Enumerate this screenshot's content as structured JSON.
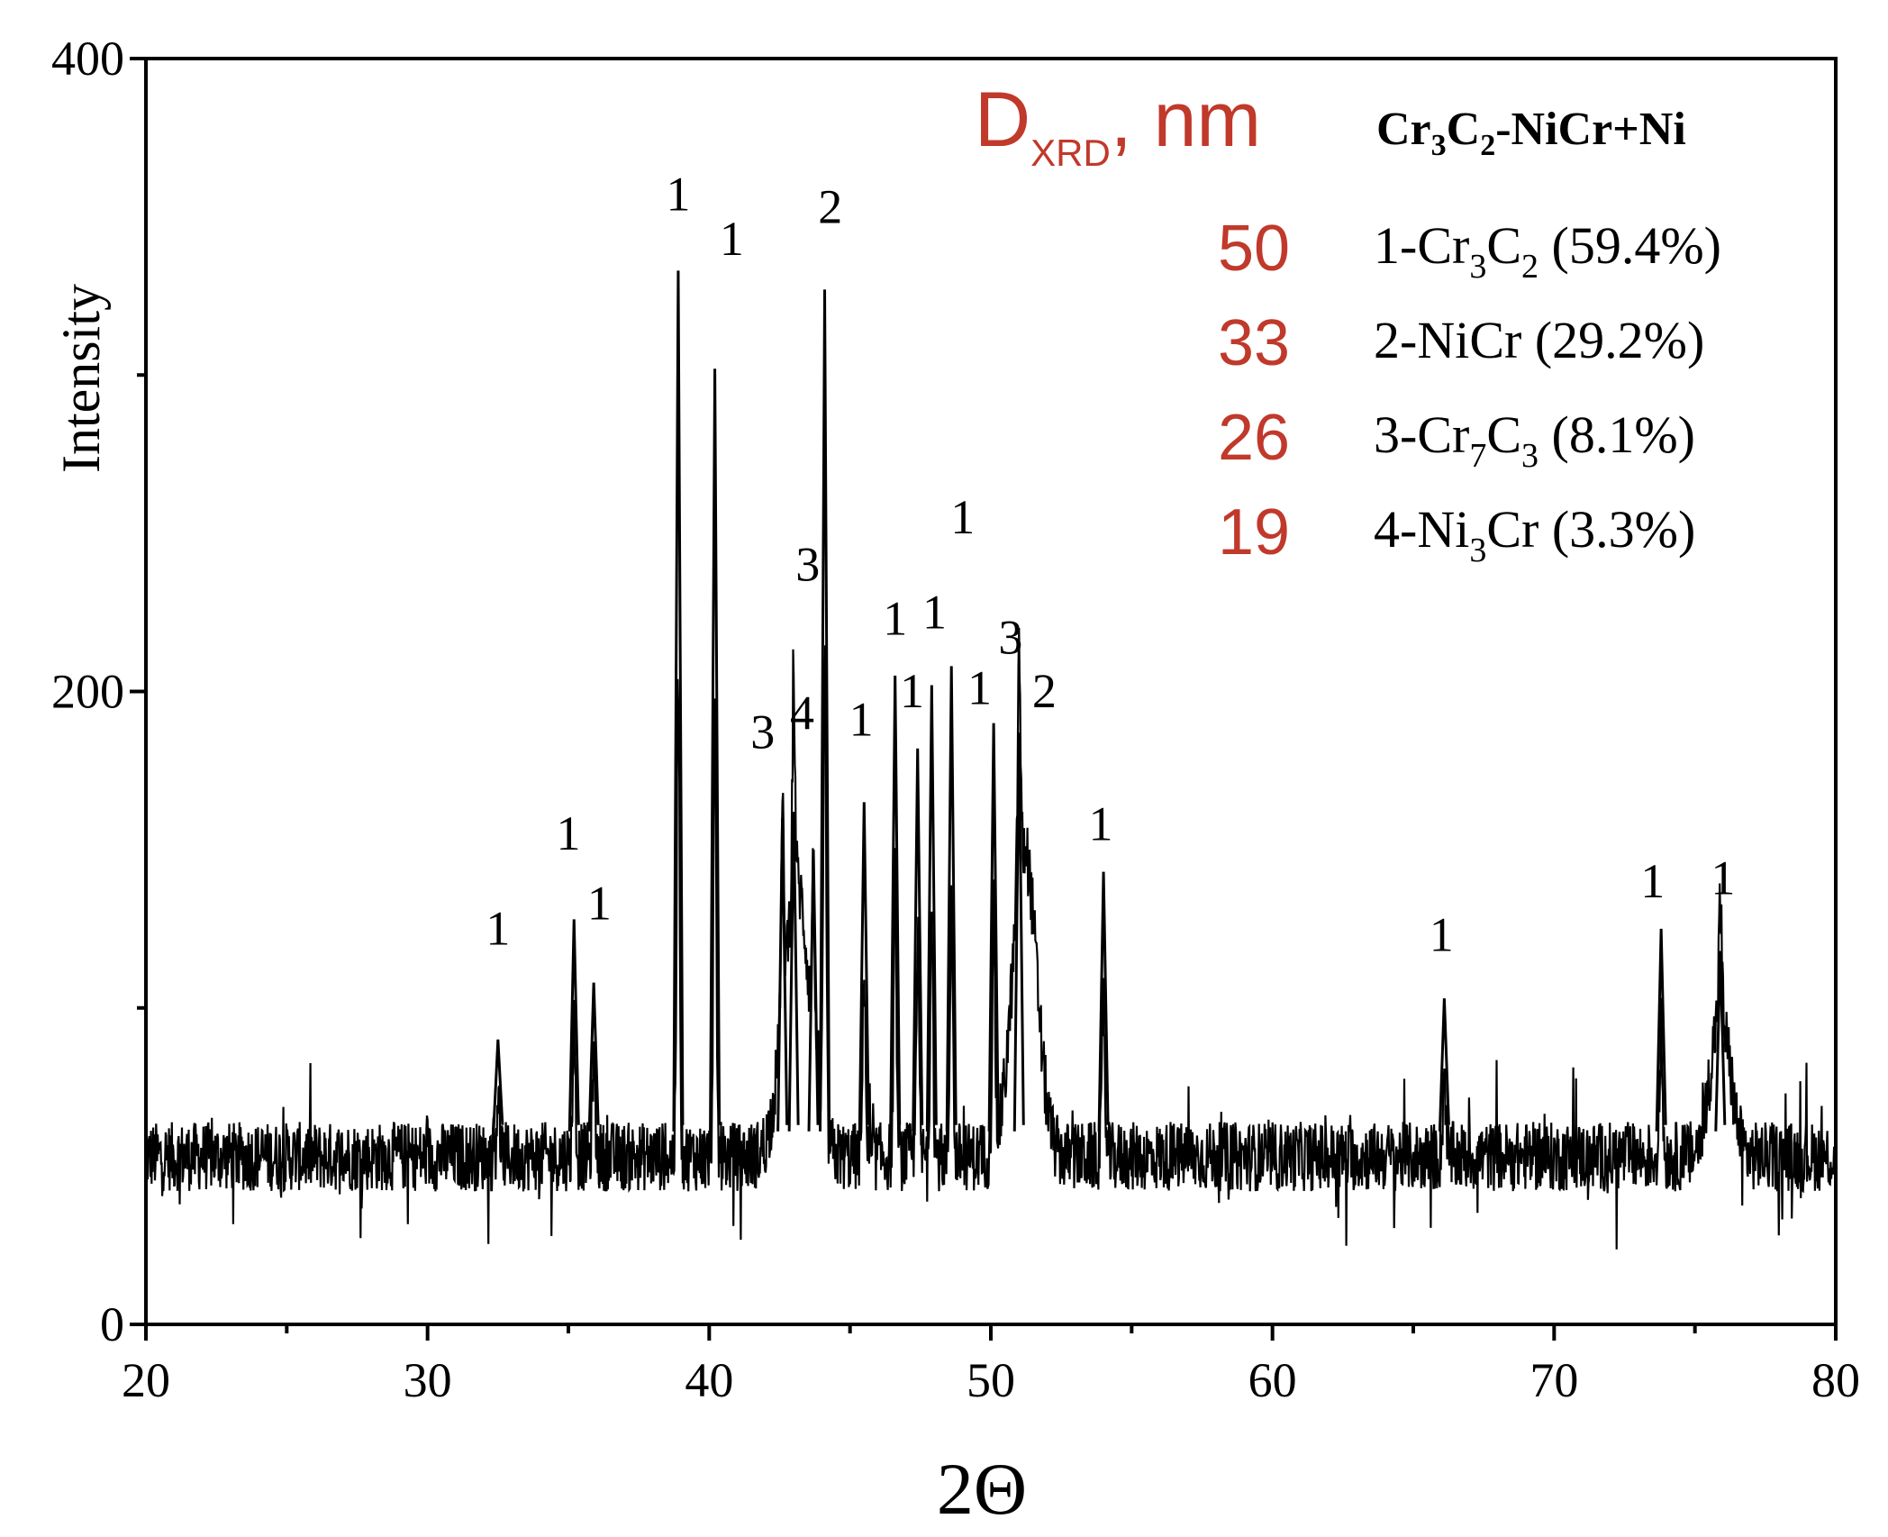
{
  "chart_data": {
    "type": "line",
    "xlabel": "2Θ",
    "ylabel": "Intensity",
    "xlim": [
      20,
      80
    ],
    "ylim": [
      0,
      400
    ],
    "x_ticks": [
      20,
      30,
      40,
      50,
      60,
      70,
      80
    ],
    "y_ticks": [
      0,
      200,
      400
    ],
    "grid": false,
    "line_color": "#000000",
    "baseline_intensity": 53,
    "noise_amplitude": 11,
    "series": [
      {
        "peaks": [
          {
            "x": 32.5,
            "y": 90
          },
          {
            "x": 35.2,
            "y": 128
          },
          {
            "x": 35.9,
            "y": 108
          },
          {
            "x": 38.9,
            "y": 333
          },
          {
            "x": 40.2,
            "y": 302
          },
          {
            "x": 42.6,
            "y": 160
          },
          {
            "x": 43.0,
            "y": 162
          },
          {
            "x": 43.7,
            "y": 150
          },
          {
            "x": 44.1,
            "y": 327
          },
          {
            "x": 45.5,
            "y": 165
          },
          {
            "x": 46.6,
            "y": 205
          },
          {
            "x": 47.4,
            "y": 182
          },
          {
            "x": 47.9,
            "y": 202
          },
          {
            "x": 48.6,
            "y": 208
          },
          {
            "x": 50.1,
            "y": 190
          },
          {
            "x": 51.0,
            "y": 187
          },
          {
            "x": 54.0,
            "y": 143
          },
          {
            "x": 66.1,
            "y": 103
          },
          {
            "x": 73.8,
            "y": 125
          },
          {
            "x": 75.9,
            "y": 118
          }
        ],
        "broad_humps": [
          {
            "x": 43.1,
            "y": 140,
            "width": 0.65
          },
          {
            "x": 51.2,
            "y": 150,
            "width": 0.6
          },
          {
            "x": 75.9,
            "y": 98,
            "width": 0.5
          }
        ]
      }
    ],
    "peak_labels": [
      {
        "x": 32.5,
        "y": 120,
        "text": "1"
      },
      {
        "x": 35.0,
        "y": 150,
        "text": "1"
      },
      {
        "x": 36.1,
        "y": 128,
        "text": "1"
      },
      {
        "x": 38.9,
        "y": 352,
        "text": "1"
      },
      {
        "x": 40.8,
        "y": 338,
        "text": "1"
      },
      {
        "x": 44.3,
        "y": 348,
        "text": "2"
      },
      {
        "x": 41.9,
        "y": 182,
        "text": "3"
      },
      {
        "x": 43.3,
        "y": 188,
        "text": "4"
      },
      {
        "x": 43.5,
        "y": 235,
        "text": "3"
      },
      {
        "x": 45.4,
        "y": 186,
        "text": "1"
      },
      {
        "x": 46.6,
        "y": 218,
        "text": "1"
      },
      {
        "x": 47.2,
        "y": 195,
        "text": "1"
      },
      {
        "x": 48.0,
        "y": 220,
        "text": "1"
      },
      {
        "x": 49.0,
        "y": 250,
        "text": "1"
      },
      {
        "x": 49.6,
        "y": 196,
        "text": "1"
      },
      {
        "x": 50.7,
        "y": 212,
        "text": "3"
      },
      {
        "x": 51.9,
        "y": 195,
        "text": "2"
      },
      {
        "x": 53.9,
        "y": 153,
        "text": "1"
      },
      {
        "x": 66.0,
        "y": 118,
        "text": "1"
      },
      {
        "x": 73.5,
        "y": 135,
        "text": "1"
      },
      {
        "x": 76.0,
        "y": 136,
        "text": "1"
      }
    ],
    "legend": {
      "header": {
        "left": "D",
        "sub": "XRD",
        "right": ", nm"
      },
      "sample": {
        "p1": "Cr",
        "s1": "3",
        "p2": "C",
        "s2": "2",
        "p3": "-NiCr+Ni"
      },
      "rows": [
        {
          "size": "50",
          "parts": [
            {
              "t": "1-Cr"
            },
            {
              "t": "3",
              "sub": true
            },
            {
              "t": "C"
            },
            {
              "t": "2",
              "sub": true
            },
            {
              "t": " (59.4%)"
            }
          ]
        },
        {
          "size": "33",
          "parts": [
            {
              "t": "2-NiCr  (29.2%)"
            }
          ]
        },
        {
          "size": "26",
          "parts": [
            {
              "t": "3-Cr"
            },
            {
              "t": "7",
              "sub": true
            },
            {
              "t": "C"
            },
            {
              "t": "3",
              "sub": true
            },
            {
              "t": " (8.1%)"
            }
          ]
        },
        {
          "size": "19",
          "parts": [
            {
              "t": "4-Ni"
            },
            {
              "t": "3",
              "sub": true
            },
            {
              "t": "Cr (3.3%)"
            }
          ]
        }
      ],
      "size_color": "#c0392b"
    }
  }
}
